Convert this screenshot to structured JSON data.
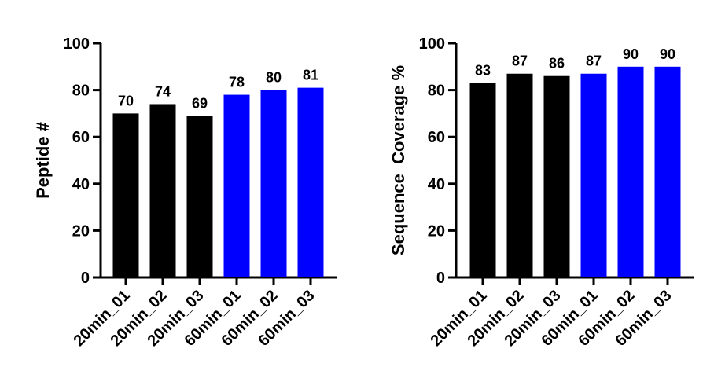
{
  "chart_data": [
    {
      "type": "bar",
      "title": "",
      "xlabel": "",
      "ylabel": "Peptide #",
      "ylim": [
        0,
        100
      ],
      "yticks": [
        0,
        20,
        40,
        60,
        80,
        100
      ],
      "categories": [
        "20min_01",
        "20min_02",
        "20min_03",
        "60min_01",
        "60min_02",
        "60min_03"
      ],
      "values": [
        70,
        74,
        69,
        78,
        80,
        81
      ],
      "data_labels": [
        "70",
        "74",
        "69",
        "78",
        "80",
        "81"
      ],
      "bar_colors": [
        "#000000",
        "#000000",
        "#000000",
        "#0000ff",
        "#0000ff",
        "#0000ff"
      ],
      "grid": false,
      "legend": "none"
    },
    {
      "type": "bar",
      "title": "",
      "xlabel": "",
      "ylabel": "Sequence  Coverage %",
      "ylim": [
        0,
        100
      ],
      "yticks": [
        0,
        20,
        40,
        60,
        80,
        100
      ],
      "categories": [
        "20min_01",
        "20min_02",
        "20min_03",
        "60min_01",
        "60min_02",
        "60min_03"
      ],
      "values": [
        83,
        87,
        86,
        87,
        90,
        90
      ],
      "data_labels": [
        "83",
        "87",
        "86",
        "87",
        "90",
        "90"
      ],
      "bar_colors": [
        "#000000",
        "#000000",
        "#000000",
        "#0000ff",
        "#0000ff",
        "#0000ff"
      ],
      "grid": false,
      "legend": "none"
    }
  ]
}
